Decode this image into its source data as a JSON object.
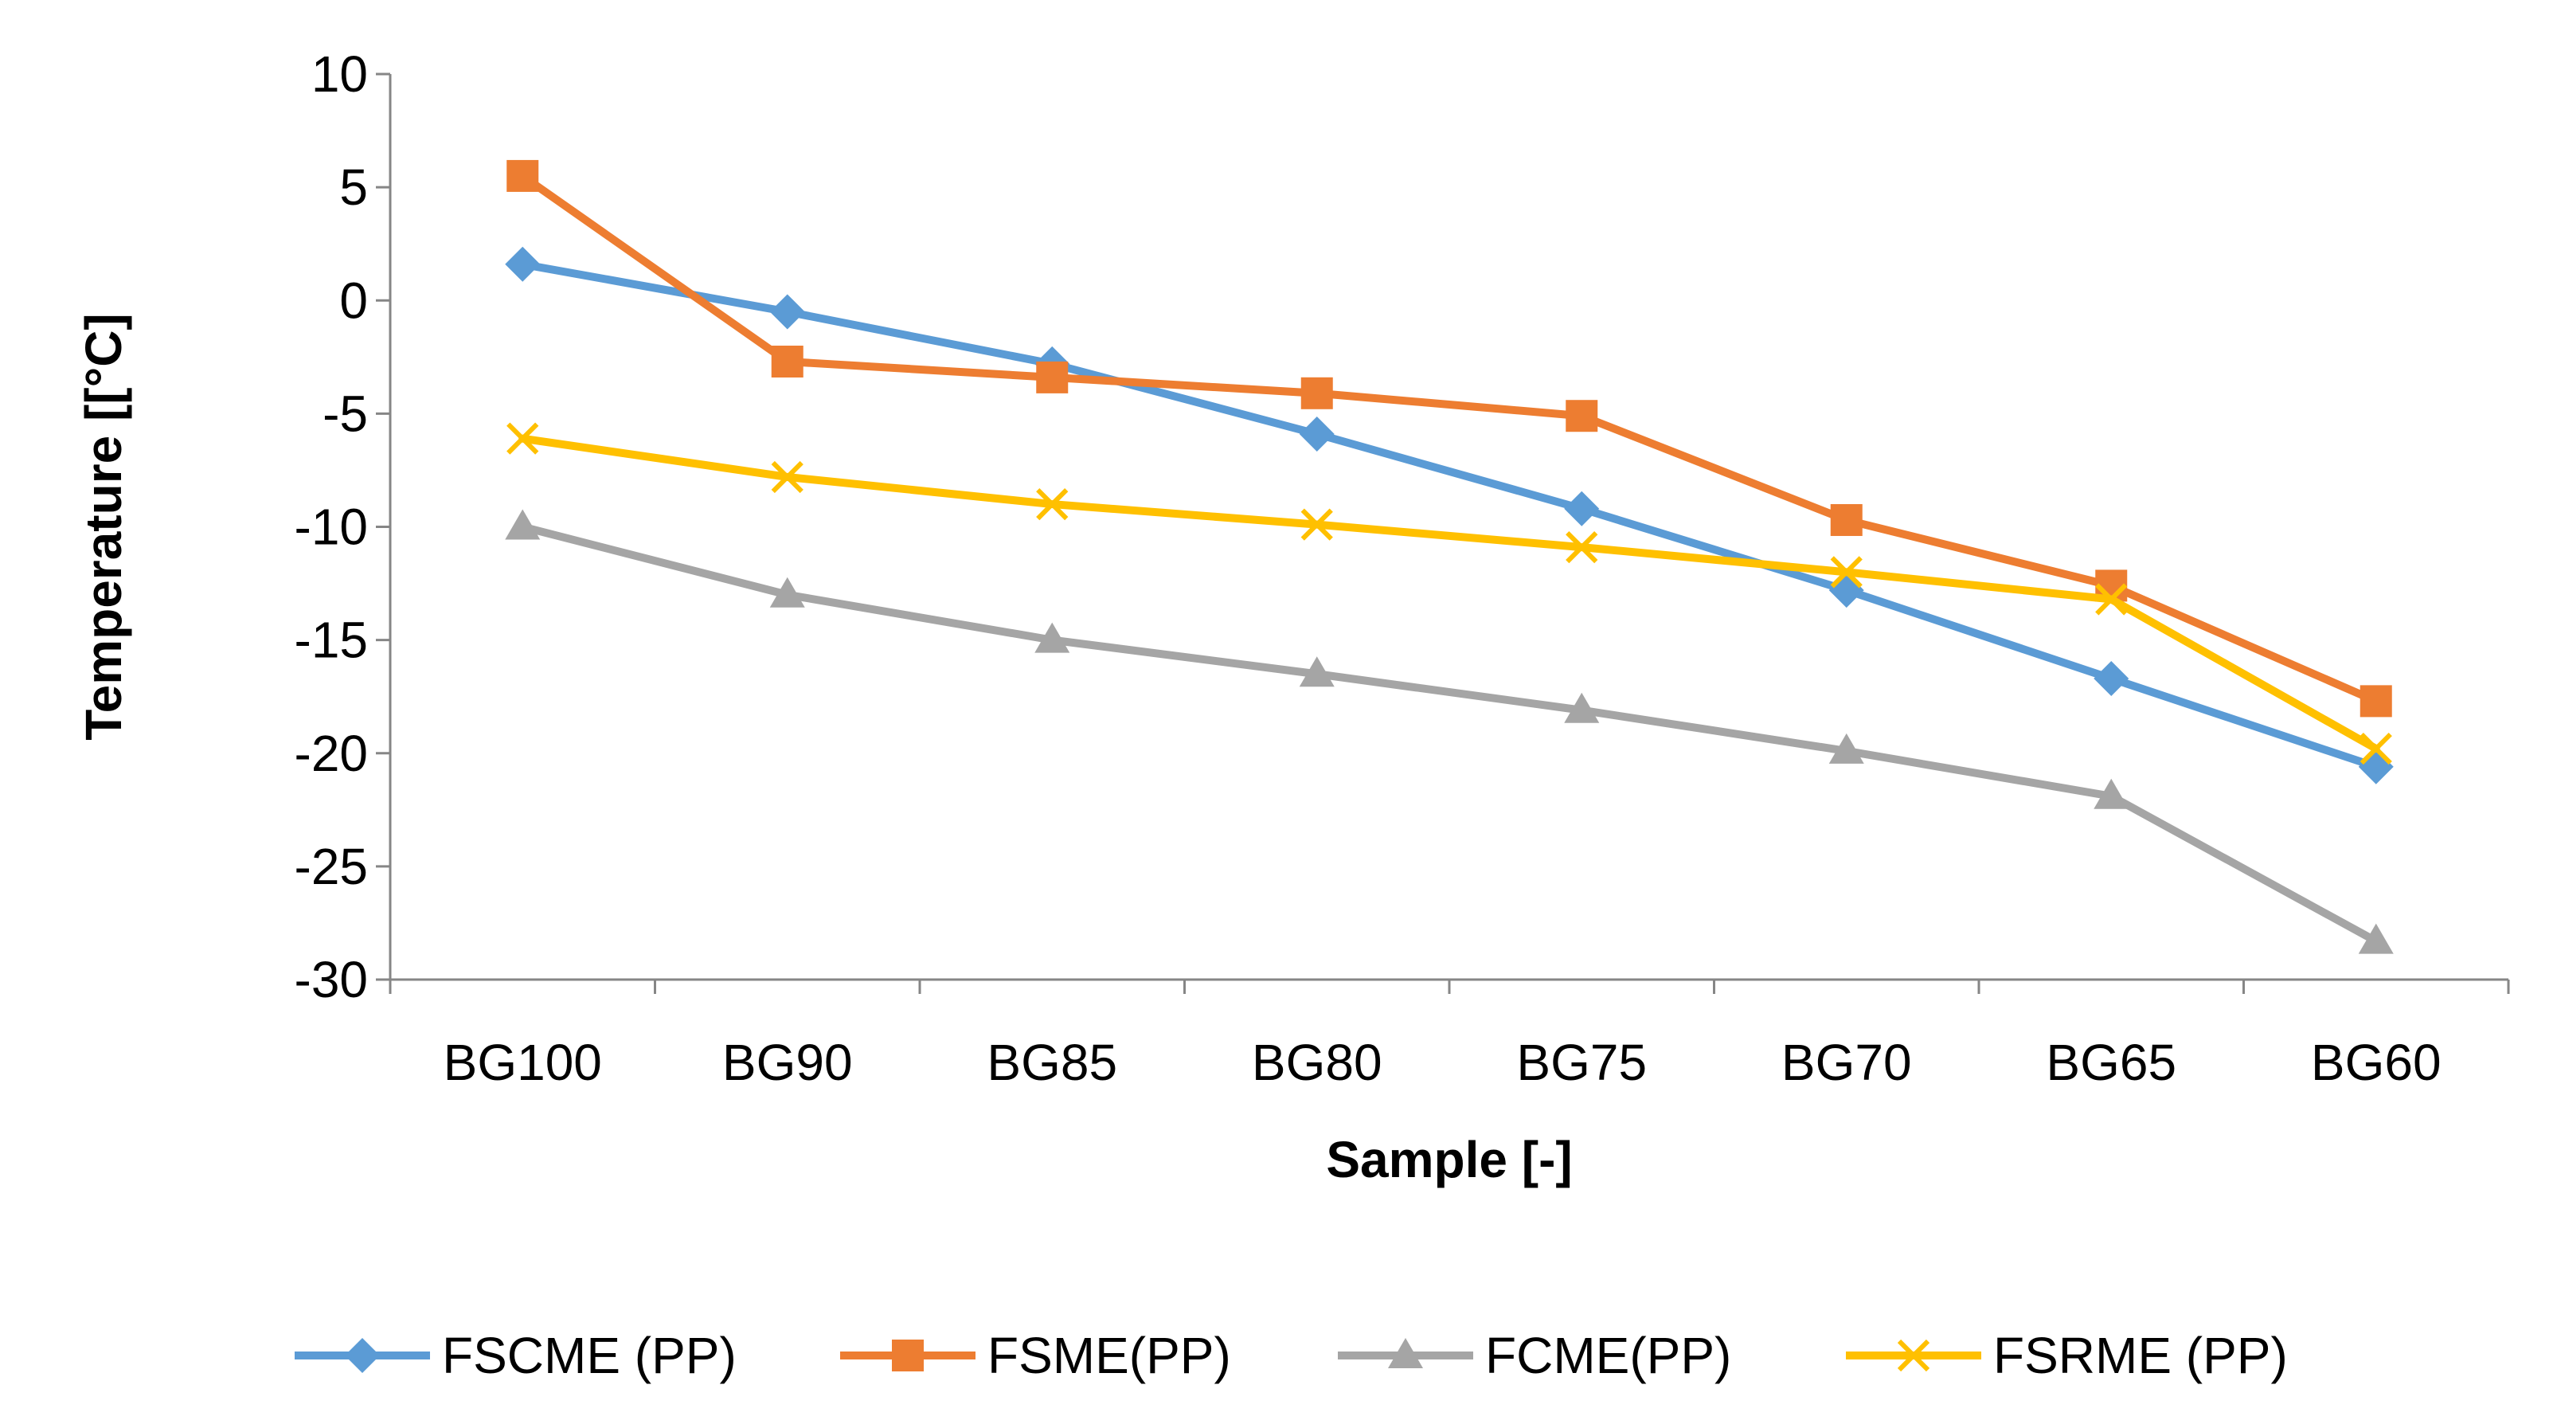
{
  "chart_data": {
    "type": "line",
    "title": "",
    "xlabel": "Sample [-]",
    "ylabel": "Temperature [[°C]",
    "ylim": [
      -30,
      10
    ],
    "yticks": [
      10,
      5,
      0,
      -5,
      -10,
      -15,
      -20,
      -25,
      -30
    ],
    "grid": false,
    "legend_position": "bottom",
    "categories": [
      "BG100",
      "BG90",
      "BG85",
      "BG80",
      "BG75",
      "BG70",
      "BG65",
      "BG60"
    ],
    "series": [
      {
        "name": "FSCME (PP)",
        "color": "#5B9BD5",
        "marker": "diamond",
        "values": [
          1.6,
          -0.5,
          -2.8,
          -5.9,
          -9.2,
          -12.8,
          -16.7,
          -20.6
        ]
      },
      {
        "name": "FSME(PP)",
        "color": "#ED7D31",
        "marker": "square",
        "values": [
          5.5,
          -2.7,
          -3.4,
          -4.1,
          -5.1,
          -9.7,
          -12.6,
          -17.7
        ]
      },
      {
        "name": "FCME(PP)",
        "color": "#A5A5A5",
        "marker": "triangle",
        "values": [
          -10.0,
          -13.0,
          -15.0,
          -16.5,
          -18.1,
          -19.9,
          -21.9,
          -28.3
        ]
      },
      {
        "name": "FSRME (PP)",
        "color": "#FFC000",
        "marker": "x",
        "values": [
          -6.1,
          -7.8,
          -9.0,
          -9.9,
          -10.9,
          -12.0,
          -13.2,
          -19.8
        ]
      }
    ]
  }
}
